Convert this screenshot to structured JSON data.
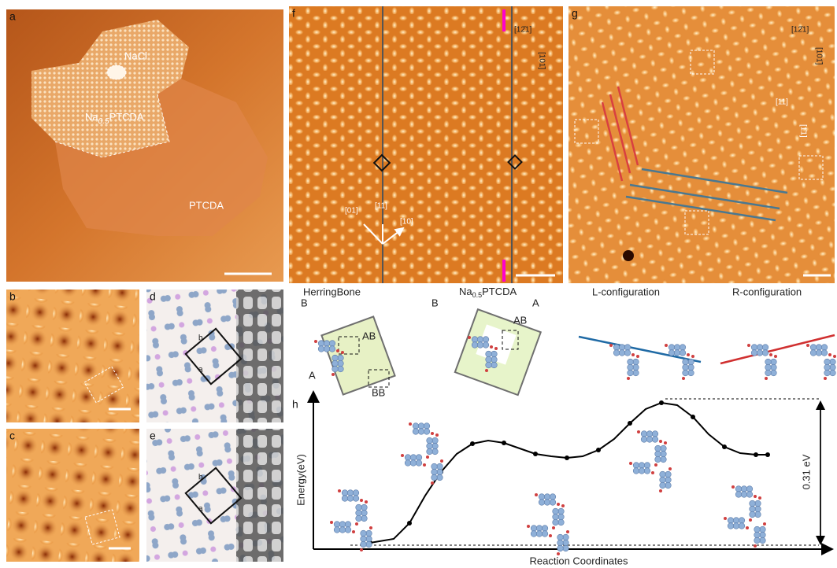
{
  "panels": {
    "a": {
      "label": "a",
      "nacl": "NaCl",
      "na": {
        "pre": "Na",
        "sub": "0.5",
        "post": "PTCDA"
      },
      "ptcda": "PTCDA"
    },
    "b": {
      "label": "b"
    },
    "c": {
      "label": "c"
    },
    "d": {
      "label": "d",
      "axis_b": "b",
      "axis_a": "a"
    },
    "e": {
      "label": "e",
      "axis_b": "b",
      "axis_a": "a"
    },
    "f": {
      "label": "f",
      "dir1": "[12̄1]",
      "dir2": "[101̄]",
      "d01": "[01]",
      "d11": "[11]",
      "d10": "[10]"
    },
    "g": {
      "label": "g",
      "dir1": "[12̄1]",
      "dir2": "[101̄]",
      "d11": "[11]",
      "d11b": "[1̄1]"
    },
    "models": {
      "herringbone": "HerringBone",
      "na": {
        "pre": "Na",
        "sub": "0.5",
        "post": "PTCDA"
      },
      "hb_b": "B",
      "hb_a": "A",
      "hb_ab": "AB",
      "hb_bb": "BB",
      "na_b": "B",
      "na_a": "A",
      "na_ab": "AB",
      "l_config": "L-configuration",
      "r_config": "R-configuration"
    },
    "h": {
      "label": "h",
      "y_label": "Energy(eV)",
      "x_label": "Reaction Coordinates",
      "barrier": "0.31 eV"
    }
  }
}
